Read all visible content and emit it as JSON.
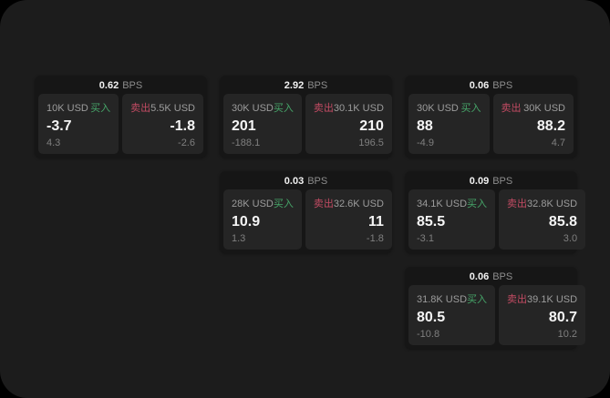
{
  "window": {
    "background": "#000000",
    "panel_background": "#1c1c1c"
  },
  "labels": {
    "buy": "买入",
    "sell": "卖出",
    "bps_unit": "BPS"
  },
  "colors": {
    "buy_green": "#46a569",
    "sell_red": "#c24b63",
    "card_bg": "#161616",
    "tile_bg": "#252525"
  },
  "cards": [
    {
      "bps": "0.62",
      "grid": {
        "row": 1,
        "col": 1
      },
      "buy": {
        "notional": "10K USD",
        "price": "-3.7",
        "delta": "4.3"
      },
      "sell": {
        "notional": "5.5K USD",
        "price": "-1.8",
        "delta": "-2.6"
      }
    },
    {
      "bps": "2.92",
      "grid": {
        "row": 1,
        "col": 2
      },
      "buy": {
        "notional": "30K USD",
        "price": "201",
        "delta": "-188.1"
      },
      "sell": {
        "notional": "30.1K USD",
        "price": "210",
        "delta": "196.5"
      }
    },
    {
      "bps": "0.06",
      "grid": {
        "row": 1,
        "col": 3
      },
      "buy": {
        "notional": "30K USD",
        "price": "88",
        "delta": "-4.9"
      },
      "sell": {
        "notional": "30K USD",
        "price": "88.2",
        "delta": "4.7"
      }
    },
    {
      "bps": "0.03",
      "grid": {
        "row": 2,
        "col": 2
      },
      "buy": {
        "notional": "28K USD",
        "price": "10.9",
        "delta": "1.3"
      },
      "sell": {
        "notional": "32.6K USD",
        "price": "11",
        "delta": "-1.8"
      }
    },
    {
      "bps": "0.09",
      "grid": {
        "row": 2,
        "col": 3
      },
      "buy": {
        "notional": "34.1K USD",
        "price": "85.5",
        "delta": "-3.1"
      },
      "sell": {
        "notional": "32.8K USD",
        "price": "85.8",
        "delta": "3.0"
      }
    },
    {
      "bps": "0.06",
      "grid": {
        "row": 3,
        "col": 3
      },
      "buy": {
        "notional": "31.8K USD",
        "price": "80.5",
        "delta": "-10.8"
      },
      "sell": {
        "notional": "39.1K USD",
        "price": "80.7",
        "delta": "10.2"
      }
    }
  ]
}
